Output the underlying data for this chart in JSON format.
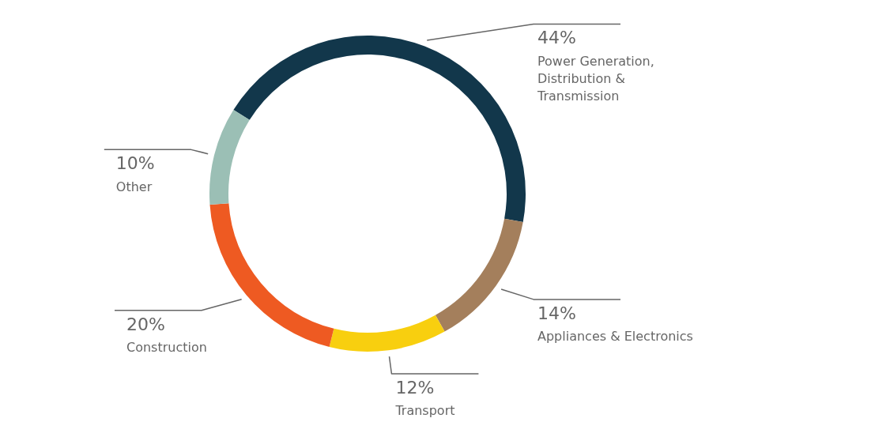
{
  "chart_data": {
    "type": "donut",
    "categories": [
      "Power Generation, Distribution & Transmission",
      "Appliances & Electronics",
      "Transport",
      "Construction",
      "Other"
    ],
    "values": [
      44,
      14,
      12,
      20,
      10
    ],
    "value_labels": [
      "44%",
      "14%",
      "12%",
      "20%",
      "10%"
    ],
    "colors": [
      "#12374b",
      "#a47f5c",
      "#f8cf0f",
      "#ee5a22",
      "#9bbfb5"
    ],
    "legend": false
  }
}
